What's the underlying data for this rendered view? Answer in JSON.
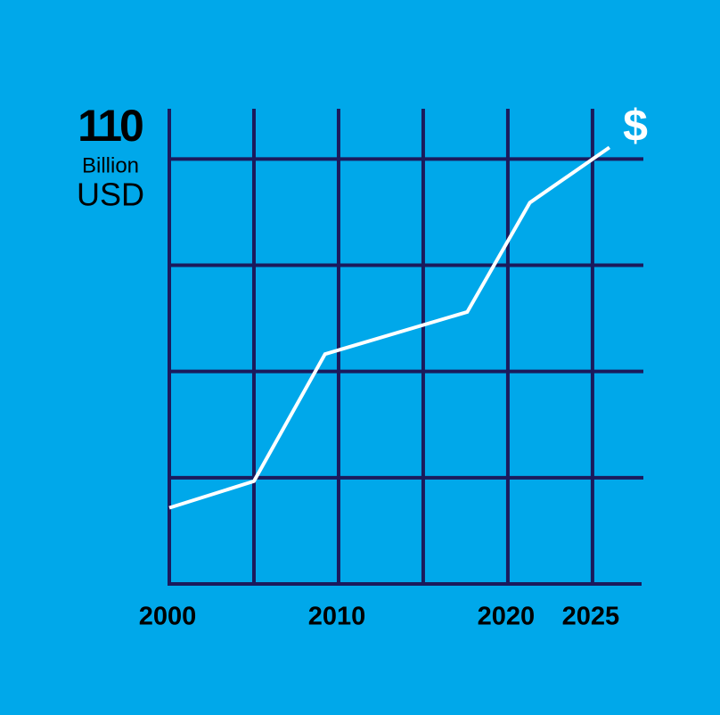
{
  "chart_data": {
    "type": "line",
    "ylabel_value": "110",
    "ylabel_lines": [
      "Billion",
      "USD"
    ],
    "annotation": "$",
    "x": [
      2000,
      2005,
      2009.2,
      2017.6,
      2021.3,
      2026
    ],
    "series": [
      {
        "color": "#ffffff",
        "values": [
          19.7,
          26.6,
          59.5,
          70.4,
          98.7,
          113.0
        ]
      }
    ],
    "xlim": [
      2000,
      2027.9
    ],
    "xticks": [
      2000,
      2010,
      2020,
      2025
    ],
    "xgrid": [
      2005,
      2010,
      2015,
      2020,
      2025
    ],
    "ylim": [
      0,
      123
    ],
    "ygrid": [
      27.5,
      55,
      82.5,
      110
    ],
    "grid_color": "#1b1a5c",
    "background": "#00a8ea",
    "grid": true
  }
}
